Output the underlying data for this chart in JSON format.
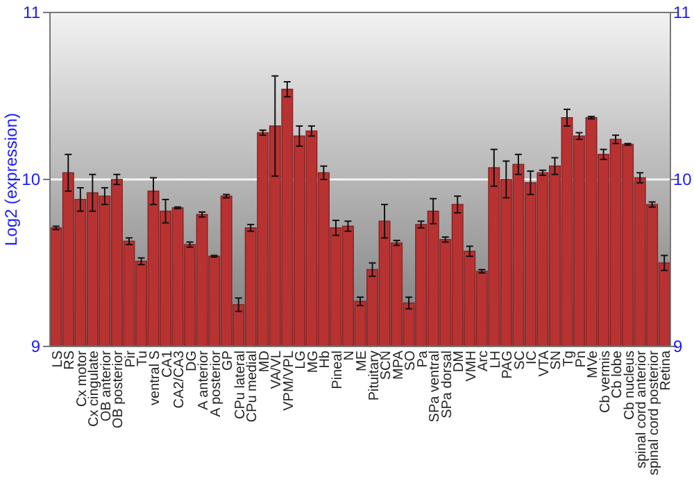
{
  "chart_data": {
    "type": "bar",
    "ylabel": "Log2 (expression)",
    "categories": [
      "LS",
      "RS",
      "Cx motor",
      "Cx cingulate",
      "OB anterior",
      "OB posterior",
      "Pir",
      "Tu",
      "ventral S",
      "CA1",
      "CA2/CA3",
      "DG",
      "A anterior",
      "A posterior",
      "GP",
      "CPu lateral",
      "CPu medial",
      "MD",
      "VA/VL",
      "VPM/VPL",
      "LG",
      "MG",
      "Hb",
      "Pineal",
      "N",
      "ME",
      "Pituitary",
      "SCN",
      "MPA",
      "SO",
      "Pa",
      "SPa ventral",
      "SPa dorsal",
      "DM",
      "VMH",
      "Arc",
      "LH",
      "PAG",
      "SC",
      "IC",
      "VTA",
      "SN",
      "Tg",
      "Pn",
      "MVe",
      "Cb vermis",
      "Cb lobe",
      "Cb nucleus",
      "spinal cord anterior",
      "spinal cord posterior",
      "Retina"
    ],
    "values": [
      9.71,
      10.04,
      9.88,
      9.92,
      9.9,
      10.0,
      9.63,
      9.51,
      9.93,
      9.81,
      9.83,
      9.61,
      9.79,
      9.54,
      9.9,
      9.25,
      9.71,
      10.28,
      10.32,
      10.54,
      10.26,
      10.29,
      10.04,
      9.71,
      9.72,
      9.27,
      9.46,
      9.75,
      9.62,
      9.26,
      9.73,
      9.81,
      9.64,
      9.85,
      9.57,
      9.45,
      10.07,
      10.0,
      10.09,
      9.98,
      10.04,
      10.08,
      10.37,
      10.26,
      10.37,
      10.15,
      10.24,
      10.21,
      10.01,
      9.85,
      9.5
    ],
    "errors": [
      0.01,
      0.11,
      0.07,
      0.11,
      0.05,
      0.03,
      0.02,
      0.02,
      0.08,
      0.07,
      0.005,
      0.015,
      0.015,
      0.005,
      0.01,
      0.04,
      0.02,
      0.015,
      0.3,
      0.045,
      0.06,
      0.03,
      0.04,
      0.045,
      0.03,
      0.025,
      0.04,
      0.1,
      0.015,
      0.035,
      0.02,
      0.075,
      0.015,
      0.05,
      0.03,
      0.01,
      0.11,
      0.11,
      0.06,
      0.07,
      0.015,
      0.05,
      0.05,
      0.02,
      0.007,
      0.03,
      0.025,
      0.005,
      0.03,
      0.015,
      0.045
    ],
    "color": "#b83232",
    "ylim": [
      9,
      11
    ],
    "yticks": [
      9,
      10,
      11
    ],
    "y2lim": [
      9,
      11
    ],
    "y2ticks": [
      9,
      10,
      11
    ],
    "grid": "y"
  }
}
